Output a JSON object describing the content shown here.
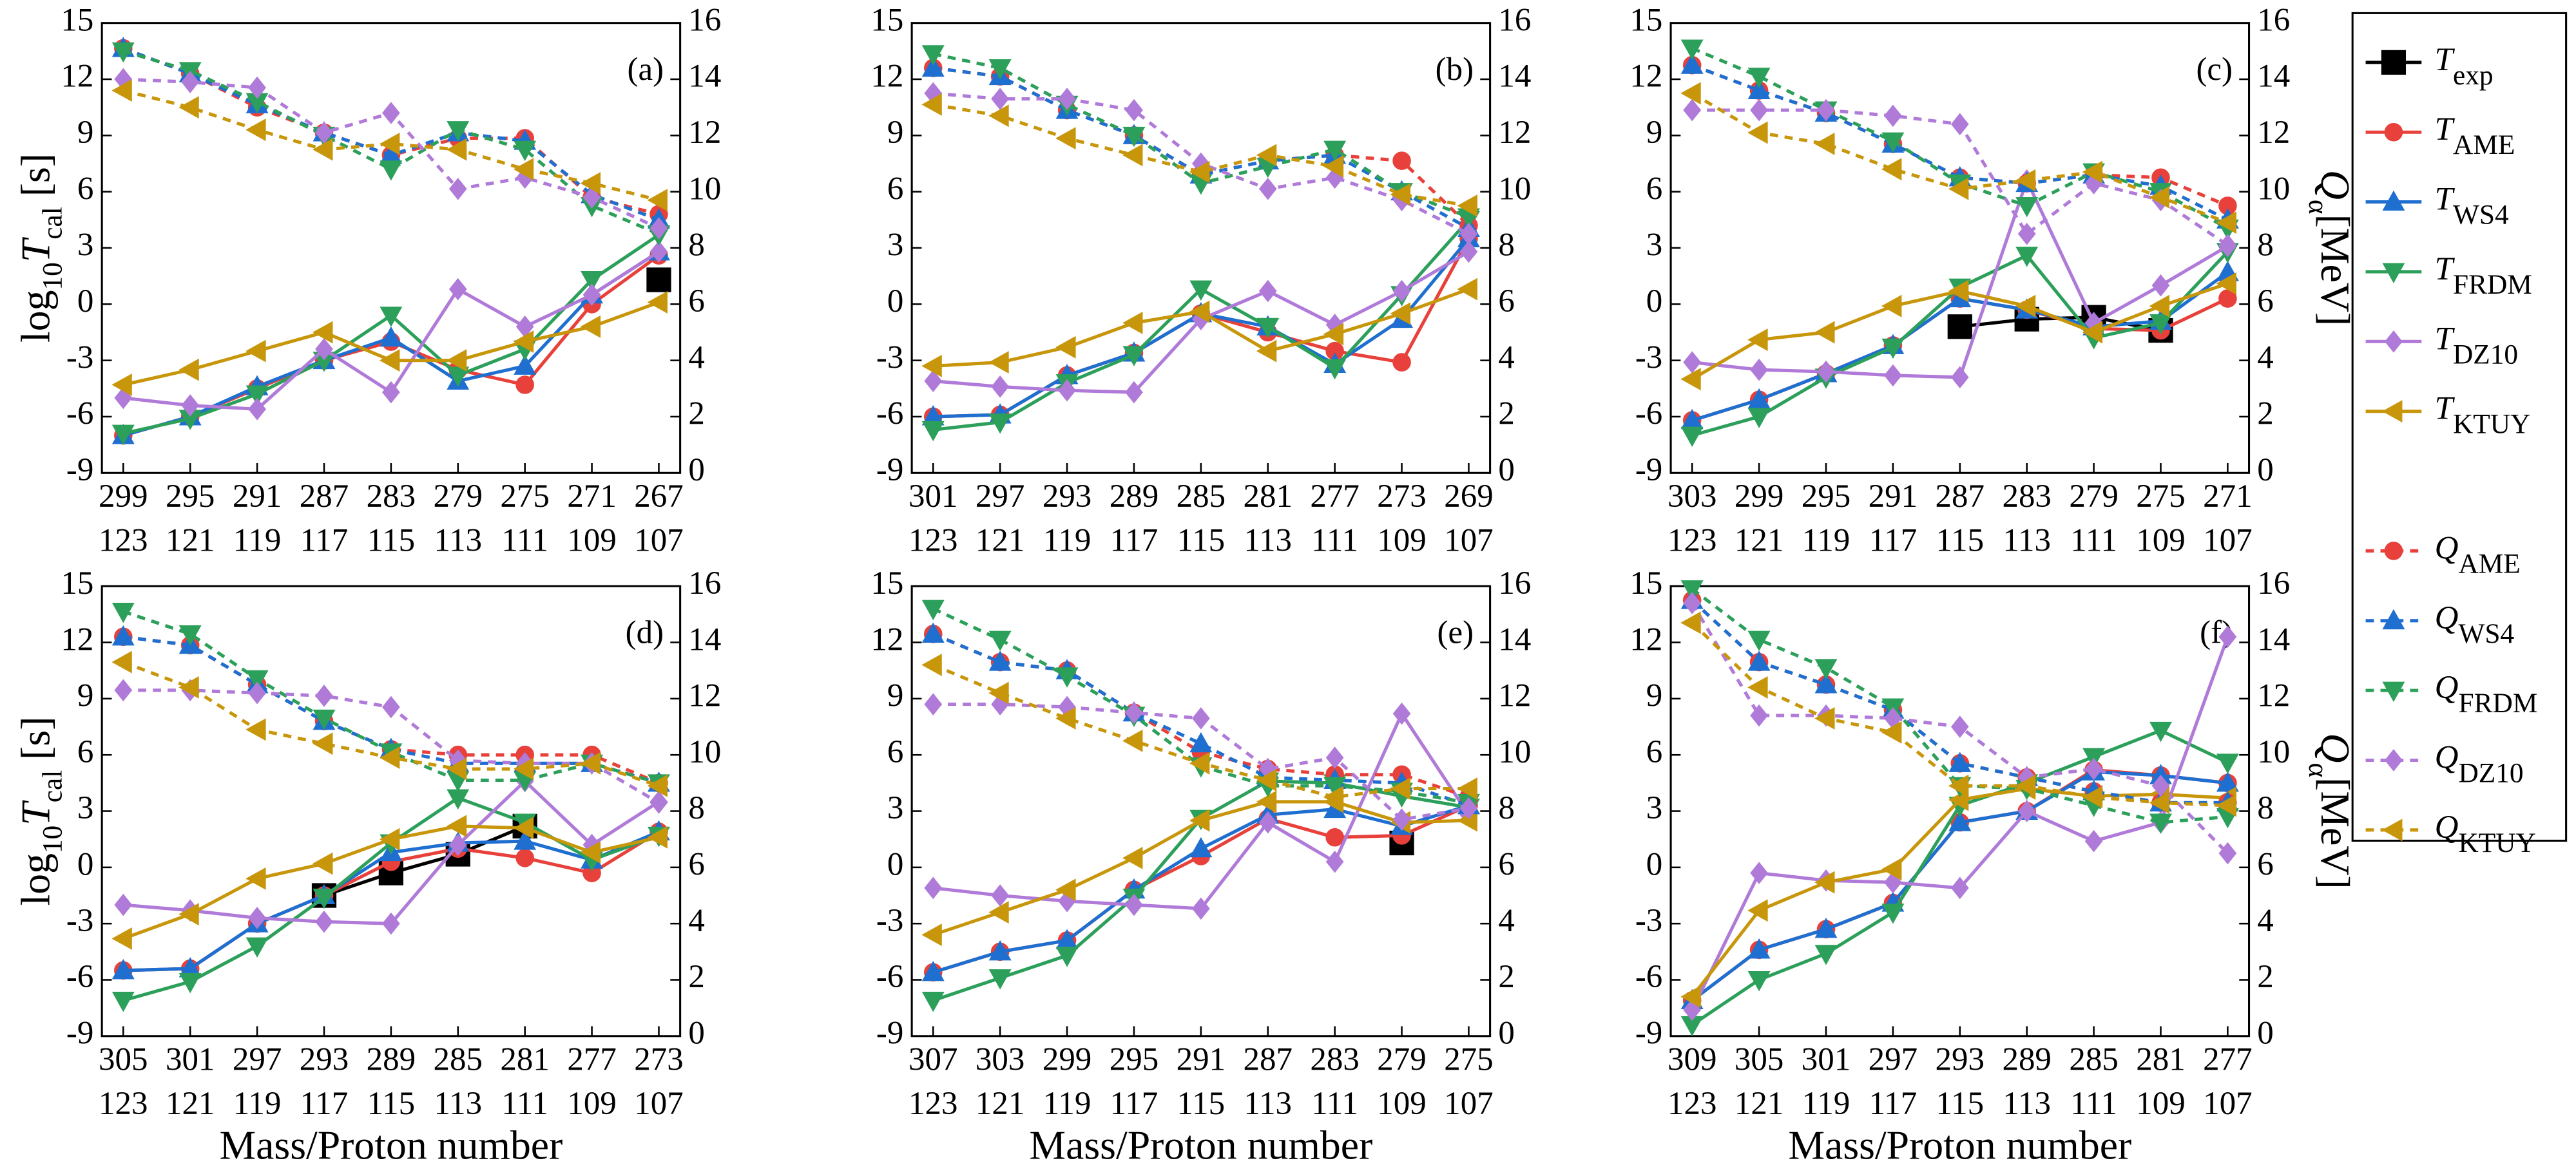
{
  "axes": {
    "ylim": [
      -9,
      15
    ],
    "yticks": [
      -9,
      -6,
      -3,
      0,
      3,
      6,
      9,
      12,
      15
    ],
    "y2lim": [
      0,
      16
    ],
    "y2ticks": [
      0,
      2,
      4,
      6,
      8,
      10,
      12,
      14,
      16
    ]
  },
  "xlabel": "Mass/Proton number",
  "ylabel": [
    {
      "text": "log"
    },
    {
      "text": "10",
      "sub": true
    },
    {
      "text": "T",
      "italic": true
    },
    {
      "text": "cal",
      "sub": true
    },
    {
      "text": " [s]"
    }
  ],
  "y2label": [
    {
      "text": "Q",
      "italic": true
    },
    {
      "text": "α",
      "sub": true
    },
    {
      "text": "[MeV]"
    }
  ],
  "legend": [
    {
      "symbol": "T",
      "subscript": "exp",
      "color": "#000000",
      "marker": "square",
      "dashed": false
    },
    {
      "symbol": "T",
      "subscript": "AME",
      "color": "#e8403a",
      "marker": "circle",
      "dashed": false
    },
    {
      "symbol": "T",
      "subscript": "WS4",
      "color": "#1f6fd0",
      "marker": "tri-up",
      "dashed": false
    },
    {
      "symbol": "T",
      "subscript": "FRDM",
      "color": "#2ca05a",
      "marker": "tri-down",
      "dashed": false
    },
    {
      "symbol": "T",
      "subscript": "DZ10",
      "color": "#b07ad8",
      "marker": "diamond",
      "dashed": false
    },
    {
      "symbol": "T",
      "subscript": "KTUY",
      "color": "#c8960a",
      "marker": "tri-left",
      "dashed": false
    },
    {
      "symbol": "Q",
      "subscript": "AME",
      "color": "#e8403a",
      "marker": "circle",
      "dashed": true
    },
    {
      "symbol": "Q",
      "subscript": "WS4",
      "color": "#1f6fd0",
      "marker": "tri-up",
      "dashed": true
    },
    {
      "symbol": "Q",
      "subscript": "FRDM",
      "color": "#2ca05a",
      "marker": "tri-down",
      "dashed": true
    },
    {
      "symbol": "Q",
      "subscript": "DZ10",
      "color": "#b07ad8",
      "marker": "diamond",
      "dashed": true
    },
    {
      "symbol": "Q",
      "subscript": "KTUY",
      "color": "#c8960a",
      "marker": "tri-left",
      "dashed": true
    }
  ],
  "chart_data": [
    {
      "type": "line",
      "annotation": "(a)",
      "categories": [
        "299",
        "295",
        "291",
        "287",
        "283",
        "279",
        "275",
        "271",
        "267"
      ],
      "proton_numbers": [
        "123",
        "121",
        "119",
        "117",
        "115",
        "113",
        "111",
        "109",
        "107"
      ],
      "series": [
        {
          "values": [
            null,
            null,
            null,
            null,
            null,
            null,
            null,
            null,
            1.3
          ]
        },
        {
          "values": [
            -7,
            -6,
            -4.5,
            -3,
            -2,
            -3.5,
            -4.3,
            0,
            2.6
          ]
        },
        {
          "values": [
            -7,
            -6,
            -4.4,
            -3,
            -1.8,
            -4.1,
            -3.3,
            0.5,
            2.8
          ]
        },
        {
          "values": [
            -6.9,
            -6.1,
            -4.8,
            -3,
            -0.6,
            -3.8,
            -2.4,
            1.3,
            3.7
          ]
        },
        {
          "values": [
            -5,
            -5.4,
            -5.6,
            -2.4,
            -4.7,
            0.8,
            -1.2,
            0.5,
            2.8
          ]
        },
        {
          "values": [
            -4.3,
            -3.5,
            -2.5,
            -1.5,
            -3,
            -3,
            -2,
            -1.2,
            0.1
          ]
        },
        {
          "values": [
            15.1,
            14.2,
            13.0,
            12.1,
            11.3,
            11.9,
            11.9,
            9.8,
            9.2
          ],
          "axis": "y2"
        },
        {
          "values": [
            15.1,
            14.2,
            13.1,
            12.1,
            11.3,
            12.1,
            11.8,
            9.9,
            9.0
          ],
          "axis": "y2"
        },
        {
          "values": [
            15.0,
            14.3,
            13.2,
            12.0,
            10.8,
            12.2,
            11.5,
            9.5,
            8.5
          ],
          "axis": "y2"
        },
        {
          "values": [
            14.0,
            13.9,
            13.7,
            12.1,
            12.8,
            10.1,
            10.5,
            9.8,
            8.7
          ],
          "axis": "y2"
        },
        {
          "values": [
            13.6,
            13.0,
            12.2,
            11.5,
            11.7,
            11.5,
            10.8,
            10.3,
            9.7
          ],
          "axis": "y2"
        }
      ]
    },
    {
      "type": "line",
      "annotation": "(b)",
      "categories": [
        "301",
        "297",
        "293",
        "289",
        "285",
        "281",
        "277",
        "273",
        "269"
      ],
      "proton_numbers": [
        "123",
        "121",
        "119",
        "117",
        "115",
        "113",
        "111",
        "109",
        "107"
      ],
      "series": [
        {
          "values": [
            null,
            null,
            null,
            null,
            null,
            null,
            null,
            null,
            null
          ]
        },
        {
          "values": [
            -6,
            -5.9,
            -3.8,
            -2.6,
            -0.5,
            -1.5,
            -2.5,
            -3.1,
            3.5
          ]
        },
        {
          "values": [
            -6,
            -5.9,
            -3.8,
            -2.6,
            -0.5,
            -1.2,
            -3.2,
            -0.8,
            3.5
          ]
        },
        {
          "values": [
            -6.7,
            -6.3,
            -4.2,
            -2.7,
            0.8,
            -1.2,
            -3.4,
            0.5,
            4.5
          ]
        },
        {
          "values": [
            -4.1,
            -4.4,
            -4.6,
            -4.7,
            -0.8,
            0.7,
            -1.1,
            0.7,
            2.8
          ]
        },
        {
          "values": [
            -3.3,
            -3.1,
            -2.3,
            -1,
            -0.4,
            -2.5,
            -1.6,
            -0.5,
            0.8
          ]
        },
        {
          "values": [
            14.4,
            14.1,
            12.9,
            12,
            10.6,
            11.1,
            11.3,
            11.1,
            8.8
          ],
          "axis": "y2"
        },
        {
          "values": [
            14.4,
            14.1,
            12.9,
            12,
            10.6,
            11.1,
            11.3,
            10,
            8.7
          ],
          "axis": "y2"
        },
        {
          "values": [
            14.9,
            14.4,
            13.1,
            12,
            10.3,
            10.9,
            11.5,
            10,
            9.1
          ],
          "axis": "y2"
        },
        {
          "values": [
            13.5,
            13.3,
            13.3,
            12.9,
            11,
            10.1,
            10.5,
            9.7,
            8.5
          ],
          "axis": "y2"
        },
        {
          "values": [
            13.1,
            12.7,
            11.9,
            11.3,
            10.7,
            11.3,
            10.9,
            9.9,
            9.5
          ],
          "axis": "y2"
        }
      ]
    },
    {
      "type": "line",
      "annotation": "(c)",
      "categories": [
        "303",
        "299",
        "295",
        "291",
        "287",
        "283",
        "279",
        "275",
        "271"
      ],
      "proton_numbers": [
        "123",
        "121",
        "119",
        "117",
        "115",
        "113",
        "111",
        "109",
        "107"
      ],
      "series": [
        {
          "values": [
            null,
            null,
            null,
            null,
            -1.2,
            -0.8,
            -0.7,
            -1.4,
            null
          ]
        },
        {
          "values": [
            -6.2,
            -5.1,
            -3.7,
            -2.2,
            0.3,
            -0.3,
            -1.3,
            -1.4,
            0.3
          ]
        },
        {
          "values": [
            -6.2,
            -5.1,
            -3.7,
            -2.2,
            0.3,
            -0.3,
            -1.2,
            -0.9,
            1.7
          ]
        },
        {
          "values": [
            -7,
            -6,
            -3.9,
            -2.3,
            0.9,
            2.6,
            -1.8,
            -1,
            2.8
          ]
        },
        {
          "values": [
            -3.1,
            -3.5,
            -3.6,
            -3.8,
            -3.9,
            6.6,
            -1,
            1,
            3.1
          ]
        },
        {
          "values": [
            -4,
            -1.9,
            -1.5,
            -0.1,
            0.7,
            -0.1,
            -1.5,
            -0.1,
            1.1
          ]
        },
        {
          "values": [
            14.5,
            13.6,
            12.8,
            11.7,
            10.5,
            10.3,
            10.6,
            10.5,
            9.5
          ],
          "axis": "y2"
        },
        {
          "values": [
            14.5,
            13.6,
            12.8,
            11.7,
            10.5,
            10.3,
            10.6,
            10.2,
            9.0
          ],
          "axis": "y2"
        },
        {
          "values": [
            15.1,
            14.1,
            12.9,
            11.8,
            10.3,
            9.5,
            10.7,
            10,
            8.7
          ],
          "axis": "y2"
        },
        {
          "values": [
            12.9,
            12.9,
            12.9,
            12.7,
            12.4,
            8.5,
            10.3,
            9.7,
            8.1
          ],
          "axis": "y2"
        },
        {
          "values": [
            13.5,
            12.1,
            11.7,
            10.8,
            10.1,
            10.4,
            10.7,
            9.8,
            8.9
          ],
          "axis": "y2"
        }
      ]
    },
    {
      "type": "line",
      "annotation": "(d)",
      "categories": [
        "305",
        "301",
        "297",
        "293",
        "289",
        "285",
        "281",
        "277",
        "273"
      ],
      "proton_numbers": [
        "123",
        "121",
        "119",
        "117",
        "115",
        "113",
        "111",
        "109",
        "107"
      ],
      "series": [
        {
          "values": [
            null,
            null,
            null,
            -1.5,
            -0.3,
            0.7,
            2.2,
            null,
            null
          ]
        },
        {
          "values": [
            -5.5,
            -5.4,
            -3,
            -1.5,
            0.3,
            1,
            0.5,
            -0.3,
            1.9
          ]
        },
        {
          "values": [
            -5.5,
            -5.4,
            -3,
            -1.5,
            0.8,
            1.3,
            1.4,
            0.4,
            1.9
          ]
        },
        {
          "values": [
            -7.1,
            -6.1,
            -4.2,
            -1.6,
            1.3,
            3.7,
            2.4,
            0.4,
            1.7
          ]
        },
        {
          "values": [
            -2,
            -2.3,
            -2.7,
            -2.9,
            -3,
            1.2,
            4.6,
            1.2,
            3.5
          ]
        },
        {
          "values": [
            -3.8,
            -2.5,
            -0.6,
            0.2,
            1.5,
            2.2,
            2.1,
            0.8,
            1.6
          ]
        },
        {
          "values": [
            14.2,
            13.9,
            12.5,
            11.2,
            10.2,
            10,
            10,
            10,
            9
          ],
          "axis": "y2"
        },
        {
          "values": [
            14.2,
            13.9,
            12.5,
            11.2,
            10.2,
            9.7,
            9.7,
            9.7,
            9
          ],
          "axis": "y2"
        },
        {
          "values": [
            15.1,
            14.3,
            12.7,
            11.3,
            10.1,
            9.1,
            9.1,
            9.7,
            9
          ],
          "axis": "y2"
        },
        {
          "values": [
            12.3,
            12.3,
            12.2,
            12.1,
            11.7,
            9.8,
            9.7,
            9.7,
            8.3
          ],
          "axis": "y2"
        },
        {
          "values": [
            13.3,
            12.4,
            10.9,
            10.4,
            9.9,
            9.5,
            9.5,
            9.7,
            8.9
          ],
          "axis": "y2"
        }
      ]
    },
    {
      "type": "line",
      "annotation": "(e)",
      "categories": [
        "307",
        "303",
        "299",
        "295",
        "291",
        "287",
        "283",
        "279",
        "275"
      ],
      "proton_numbers": [
        "123",
        "121",
        "119",
        "117",
        "115",
        "113",
        "111",
        "109",
        "107"
      ],
      "series": [
        {
          "values": [
            null,
            null,
            null,
            null,
            null,
            null,
            null,
            1.3,
            null
          ]
        },
        {
          "values": [
            -5.6,
            -4.5,
            -3.9,
            -1.2,
            0.6,
            2.6,
            1.6,
            1.7,
            3.3
          ]
        },
        {
          "values": [
            -5.6,
            -4.5,
            -3.9,
            -1.2,
            1,
            2.8,
            3.1,
            2.2,
            3.3
          ]
        },
        {
          "values": [
            -7.1,
            -5.9,
            -4.7,
            -1.6,
            2.6,
            4.6,
            4.5,
            3.8,
            3.2
          ]
        },
        {
          "values": [
            -1.1,
            -1.5,
            -1.8,
            -2,
            -2.2,
            2.4,
            0.3,
            8.2,
            2.8
          ]
        },
        {
          "values": [
            -3.6,
            -2.4,
            -1.2,
            0.5,
            2.5,
            3.5,
            3.5,
            2.4,
            2.5
          ]
        },
        {
          "values": [
            14.3,
            13.3,
            13,
            11.5,
            10.1,
            9.5,
            9.3,
            9.3,
            8.5
          ],
          "axis": "y2"
        },
        {
          "values": [
            14.3,
            13.3,
            13,
            11.5,
            10.4,
            9.2,
            9.1,
            9,
            8.2
          ],
          "axis": "y2"
        },
        {
          "values": [
            15.2,
            14.1,
            12.8,
            11.4,
            9.6,
            8.9,
            8.9,
            8.7,
            8.3
          ],
          "axis": "y2"
        },
        {
          "values": [
            11.8,
            11.8,
            11.7,
            11.5,
            11.3,
            9.5,
            9.9,
            7.7,
            8.1
          ],
          "axis": "y2"
        },
        {
          "values": [
            13.2,
            12.2,
            11.3,
            10.5,
            9.7,
            9.1,
            8.5,
            8.8,
            8.8
          ],
          "axis": "y2"
        }
      ]
    },
    {
      "type": "line",
      "annotation": "(f)",
      "categories": [
        "309",
        "305",
        "301",
        "297",
        "293",
        "289",
        "285",
        "281",
        "277"
      ],
      "proton_numbers": [
        "123",
        "121",
        "119",
        "117",
        "115",
        "113",
        "111",
        "109",
        "107"
      ],
      "series": [
        {
          "values": [
            null,
            null,
            null,
            null,
            null,
            null,
            null,
            null,
            null
          ]
        },
        {
          "values": [
            -7.1,
            -4.4,
            -3.3,
            -1.9,
            2.4,
            3,
            5.2,
            4.9,
            4.5
          ]
        },
        {
          "values": [
            -7.1,
            -4.4,
            -3.3,
            -1.9,
            2.4,
            3,
            5.1,
            4.9,
            4.5
          ]
        },
        {
          "values": [
            -8.4,
            -6,
            -4.6,
            -2.4,
            3.3,
            4.5,
            5.9,
            7.3,
            5.6
          ]
        },
        {
          "values": [
            -7.6,
            -0.3,
            -0.7,
            -0.8,
            -1.1,
            3,
            1.4,
            2.4,
            12.3
          ]
        },
        {
          "values": [
            -6.9,
            -2.3,
            -0.8,
            -0.1,
            3.6,
            4.2,
            3.8,
            3.9,
            3.7
          ]
        },
        {
          "values": [
            15.5,
            13.3,
            12.5,
            11.6,
            9.7,
            9.2,
            8.7,
            8.3,
            8.3
          ],
          "axis": "y2"
        },
        {
          "values": [
            15.5,
            13.3,
            12.5,
            11.6,
            9.7,
            9.2,
            8.7,
            8.3,
            8.3
          ],
          "axis": "y2"
        },
        {
          "values": [
            15.9,
            14.1,
            13.1,
            11.7,
            8.9,
            8.8,
            8.2,
            7.6,
            7.8
          ],
          "axis": "y2"
        },
        {
          "values": [
            15.4,
            11.4,
            11.4,
            11.3,
            11,
            9.2,
            9.5,
            8.9,
            6.5
          ],
          "axis": "y2"
        },
        {
          "values": [
            14.7,
            12.4,
            11.3,
            10.8,
            8.9,
            8.9,
            8.5,
            8.3,
            8.2
          ],
          "axis": "y2"
        }
      ]
    }
  ]
}
